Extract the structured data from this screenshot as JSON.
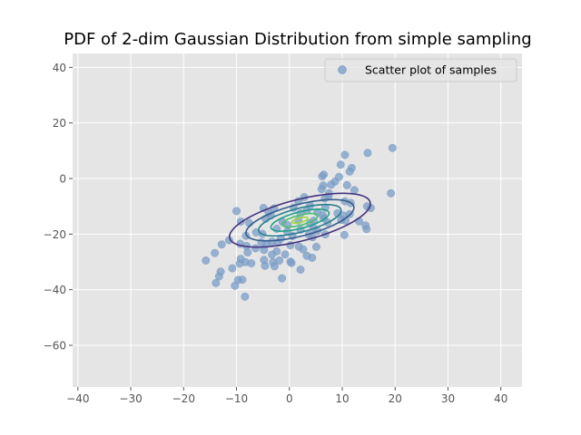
{
  "chart_data": {
    "type": "scatter",
    "title": "PDF of 2-dim Gaussian Distribution from simple sampling",
    "xlabel": "",
    "ylabel": "",
    "xlim": [
      -41,
      44
    ],
    "ylim": [
      -75,
      45
    ],
    "x_ticks": [
      -40,
      -30,
      -20,
      -10,
      0,
      10,
      20,
      30,
      40
    ],
    "y_ticks": [
      -60,
      -40,
      -20,
      0,
      20,
      40
    ],
    "x_tick_labels": [
      "−40",
      "−30",
      "−20",
      "−10",
      "0",
      "10",
      "20",
      "30",
      "40"
    ],
    "y_tick_labels": [
      "−60",
      "−40",
      "−20",
      "0",
      "20",
      "40"
    ],
    "grid": true,
    "style": "ggplot",
    "background_color": "#e5e5e5",
    "grid_color": "#ffffff",
    "legend": {
      "position": "top-right",
      "entries": [
        "Scatter plot of samples"
      ]
    },
    "series": [
      {
        "name": "Scatter plot of samples",
        "type": "scatter",
        "color": "#7a9cc6",
        "alpha": 0.75,
        "points": [
          [
            19.5,
            11
          ],
          [
            14.8,
            9.2
          ],
          [
            10.5,
            8.5
          ],
          [
            9.7,
            5
          ],
          [
            11.8,
            3.8
          ],
          [
            11.4,
            2.5
          ],
          [
            6.5,
            1.4
          ],
          [
            6.2,
            0.8
          ],
          [
            9.4,
            0.6
          ],
          [
            8.6,
            -1.1
          ],
          [
            7.9,
            -2.2
          ],
          [
            6.4,
            -2.5
          ],
          [
            10.9,
            -2.4
          ],
          [
            6.1,
            -3.8
          ],
          [
            12.3,
            -4.2
          ],
          [
            7.5,
            -5.3
          ],
          [
            19.2,
            -5.3
          ],
          [
            7.4,
            -6.5
          ],
          [
            6.7,
            -7.1
          ],
          [
            10.5,
            -8.2
          ],
          [
            11.6,
            -8.8
          ],
          [
            2.8,
            -6.7
          ],
          [
            1.7,
            -8.2
          ],
          [
            0.8,
            -10.5
          ],
          [
            3.3,
            -11.5
          ],
          [
            3.9,
            -9.7
          ],
          [
            6.8,
            -10.4
          ],
          [
            -2.9,
            -10.8
          ],
          [
            -4.9,
            -10.6
          ],
          [
            -3.9,
            -12.2
          ],
          [
            2.1,
            -12.5
          ],
          [
            5.3,
            -12.1
          ],
          [
            6.3,
            -13.2
          ],
          [
            9.1,
            -12.5
          ],
          [
            10.2,
            -13.3
          ],
          [
            11.4,
            -12.8
          ],
          [
            14.7,
            -10
          ],
          [
            15.4,
            -10.6
          ],
          [
            -10,
            -11.7
          ],
          [
            -9.2,
            -15.5
          ],
          [
            -7.6,
            -16
          ],
          [
            -4.5,
            -14.5
          ],
          [
            -3.5,
            -13.3
          ],
          [
            -1.3,
            -15.6
          ],
          [
            -0.3,
            -16.8
          ],
          [
            1.7,
            -15.1
          ],
          [
            3.9,
            -16.1
          ],
          [
            4.6,
            -15.2
          ],
          [
            6.5,
            -14.3
          ],
          [
            7.2,
            -15.8
          ],
          [
            9.8,
            -14.9
          ],
          [
            10.6,
            -15.1
          ],
          [
            13.2,
            -15.4
          ],
          [
            14.4,
            -16.9
          ],
          [
            14.6,
            -18.2
          ],
          [
            -2.4,
            -18.1
          ],
          [
            -0.4,
            -19.1
          ],
          [
            2.1,
            -18.4
          ],
          [
            4.6,
            -17.8
          ],
          [
            5.3,
            -18.8
          ],
          [
            -8.2,
            -20.6
          ],
          [
            -6.3,
            -19.4
          ],
          [
            -5.1,
            -19.9
          ],
          [
            -1.6,
            -21.6
          ],
          [
            0.6,
            -20.7
          ],
          [
            3.7,
            -20.2
          ],
          [
            4.4,
            -21.1
          ],
          [
            6.8,
            -20.1
          ],
          [
            10.4,
            -20.3
          ],
          [
            -3.3,
            -22.7
          ],
          [
            -2.2,
            -23
          ],
          [
            -5.3,
            -23
          ],
          [
            -4.3,
            -23.6
          ],
          [
            -9.3,
            -23.5
          ],
          [
            -8.1,
            -24.3
          ],
          [
            -12.8,
            -23.7
          ],
          [
            -11.4,
            -22.2
          ],
          [
            -6.4,
            -25.1
          ],
          [
            -4.8,
            -25.7
          ],
          [
            -2.4,
            -26.2
          ],
          [
            0.2,
            -24
          ],
          [
            1.8,
            -24.5
          ],
          [
            2.6,
            -25.5
          ],
          [
            5.1,
            -24.6
          ],
          [
            -14.1,
            -26.8
          ],
          [
            -7.9,
            -26.6
          ],
          [
            -3.3,
            -27.4
          ],
          [
            -0.8,
            -27.3
          ],
          [
            3.3,
            -27.8
          ],
          [
            4.3,
            -28.5
          ],
          [
            -15.8,
            -29.5
          ],
          [
            -9.2,
            -28.9
          ],
          [
            -8.3,
            -30.1
          ],
          [
            -7.2,
            -30.5
          ],
          [
            -4.8,
            -29.3
          ],
          [
            -3.1,
            -30.1
          ],
          [
            -1.9,
            -29.5
          ],
          [
            0.2,
            -29.9
          ],
          [
            0.4,
            -30.4
          ],
          [
            -4.6,
            -31.4
          ],
          [
            -2.8,
            -31.6
          ],
          [
            -9.4,
            -30.6
          ],
          [
            -13,
            -33.5
          ],
          [
            -10.8,
            -32.3
          ],
          [
            -1.4,
            -35.9
          ],
          [
            2.1,
            -32.8
          ],
          [
            -13.3,
            -35.2
          ],
          [
            -13.9,
            -37.6
          ],
          [
            -9.7,
            -36.5
          ],
          [
            -8.9,
            -36.4
          ],
          [
            -10.3,
            -38.6
          ],
          [
            -8.4,
            -42.5
          ]
        ]
      }
    ],
    "contours": {
      "center": [
        2,
        -15
      ],
      "angle_deg": 31,
      "levels": [
        {
          "a": 15,
          "b": 6.8,
          "color": "#46327e"
        },
        {
          "a": 11.5,
          "b": 5.2,
          "color": "#365c8d"
        },
        {
          "a": 8.8,
          "b": 3.9,
          "color": "#277f8e"
        },
        {
          "a": 6.2,
          "b": 2.7,
          "color": "#1fa187"
        },
        {
          "a": 3.8,
          "b": 1.65,
          "color": "#4ac16d"
        },
        {
          "a": 1.7,
          "b": 0.75,
          "color": "#a0da39"
        }
      ]
    }
  }
}
